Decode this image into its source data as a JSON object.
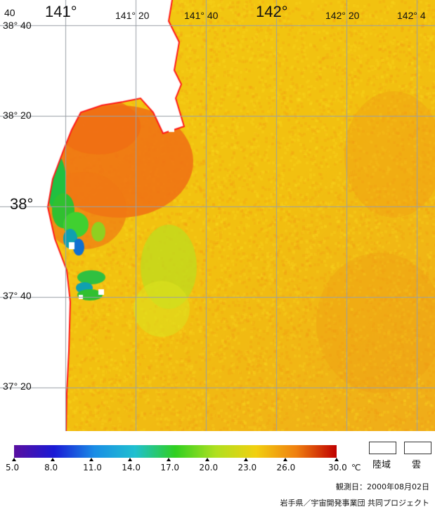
{
  "map": {
    "lon_labels": [
      "141°",
      "141° 20",
      "141° 40",
      "142°",
      "142° 20",
      "142° 4"
    ],
    "lat_labels": [
      "38° 40",
      "38° 20",
      "38°",
      "37° 40",
      "37° 20"
    ],
    "corner_fragment": "40",
    "colors": {
      "land": "#ffffff",
      "coastline": "#ff1a1a",
      "grid": "#9aa0a6",
      "sea_base": "#f2c212"
    }
  },
  "colorbar": {
    "ticks": [
      "5.0",
      "8.0",
      "11.0",
      "14.0",
      "17.0",
      "20.0",
      "23.0",
      "26.0",
      "30.0"
    ],
    "unit": "℃",
    "range": [
      5.0,
      30.0
    ],
    "colors": [
      "#5a0fa0",
      "#1a1ad6",
      "#1a8ee6",
      "#20c0d0",
      "#30d020",
      "#b0e020",
      "#f2d010",
      "#f08010",
      "#c00000"
    ]
  },
  "legend": {
    "land_label": "陸域",
    "cloud_label": "雲"
  },
  "footer": {
    "observation": "観測日：2000年08月02日",
    "credit": "岩手県／宇宙開発事業団  共同プロジェクト"
  }
}
